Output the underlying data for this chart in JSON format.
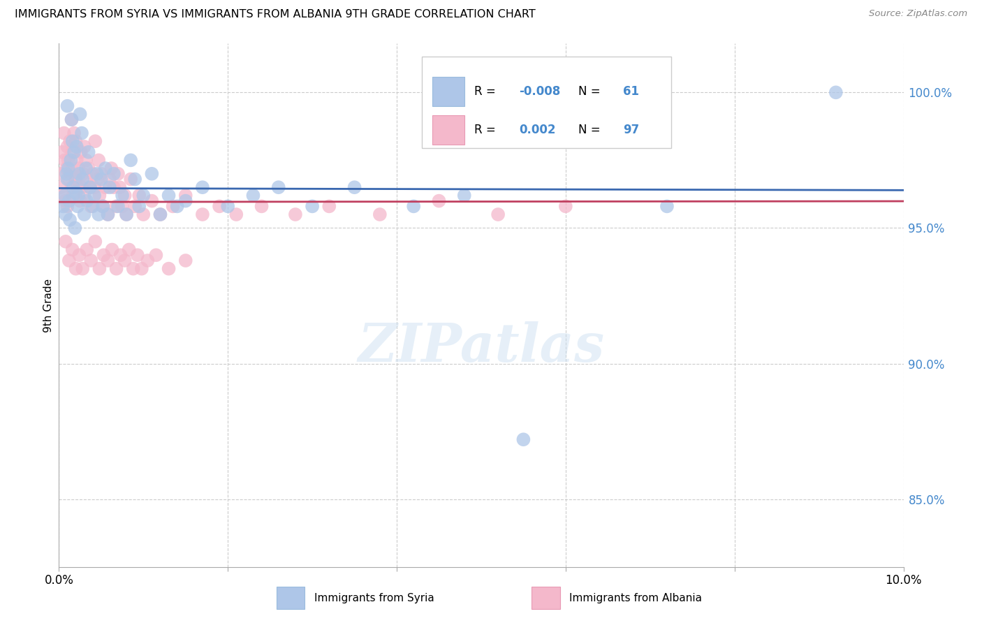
{
  "title": "IMMIGRANTS FROM SYRIA VS IMMIGRANTS FROM ALBANIA 9TH GRADE CORRELATION CHART",
  "source": "Source: ZipAtlas.com",
  "ylabel": "9th Grade",
  "xlim": [
    0.0,
    10.0
  ],
  "ylim": [
    82.5,
    101.8
  ],
  "yticks": [
    85.0,
    90.0,
    95.0,
    100.0
  ],
  "ytick_labels": [
    "85.0%",
    "90.0%",
    "95.0%",
    "100.0%"
  ],
  "watermark": "ZIPatlas",
  "syria_color": "#aec6e8",
  "albania_color": "#f4b8cb",
  "syria_line_color": "#3a68b0",
  "albania_line_color": "#c04060",
  "background_color": "#ffffff",
  "grid_color": "#cccccc",
  "syria_R": "-0.008",
  "syria_N": "61",
  "albania_R": "0.002",
  "albania_N": "97",
  "syria_x": [
    0.05,
    0.07,
    0.08,
    0.09,
    0.1,
    0.1,
    0.11,
    0.12,
    0.13,
    0.14,
    0.15,
    0.16,
    0.17,
    0.18,
    0.19,
    0.2,
    0.21,
    0.22,
    0.23,
    0.24,
    0.25,
    0.27,
    0.28,
    0.3,
    0.32,
    0.33,
    0.35,
    0.37,
    0.4,
    0.42,
    0.45,
    0.47,
    0.5,
    0.52,
    0.55,
    0.58,
    0.6,
    0.65,
    0.7,
    0.75,
    0.8,
    0.85,
    0.9,
    0.95,
    1.0,
    1.1,
    1.2,
    1.3,
    1.4,
    1.5,
    1.7,
    2.0,
    2.3,
    2.6,
    3.0,
    3.5,
    4.2,
    4.8,
    5.5,
    7.2,
    9.2
  ],
  "syria_y": [
    95.8,
    96.2,
    95.5,
    97.0,
    96.8,
    99.5,
    97.2,
    96.0,
    95.3,
    97.5,
    99.0,
    98.2,
    96.5,
    97.8,
    95.0,
    96.3,
    98.0,
    95.8,
    96.2,
    97.0,
    99.2,
    98.5,
    96.8,
    95.5,
    97.2,
    96.0,
    97.8,
    96.5,
    95.8,
    96.2,
    97.0,
    95.5,
    96.8,
    95.8,
    97.2,
    95.5,
    96.5,
    97.0,
    95.8,
    96.2,
    95.5,
    97.5,
    96.8,
    95.8,
    96.2,
    97.0,
    95.5,
    96.2,
    95.8,
    96.0,
    96.5,
    95.8,
    96.2,
    96.5,
    95.8,
    96.5,
    95.8,
    96.2,
    87.2,
    95.8,
    100.0
  ],
  "albania_x": [
    0.02,
    0.03,
    0.04,
    0.05,
    0.06,
    0.07,
    0.08,
    0.09,
    0.1,
    0.1,
    0.11,
    0.12,
    0.13,
    0.14,
    0.15,
    0.15,
    0.16,
    0.17,
    0.18,
    0.19,
    0.2,
    0.2,
    0.21,
    0.22,
    0.23,
    0.25,
    0.26,
    0.27,
    0.28,
    0.3,
    0.3,
    0.32,
    0.33,
    0.35,
    0.37,
    0.38,
    0.4,
    0.42,
    0.43,
    0.45,
    0.47,
    0.48,
    0.5,
    0.52,
    0.55,
    0.58,
    0.6,
    0.62,
    0.65,
    0.68,
    0.7,
    0.72,
    0.75,
    0.78,
    0.8,
    0.85,
    0.9,
    0.95,
    1.0,
    1.1,
    1.2,
    1.35,
    1.5,
    1.7,
    1.9,
    2.1,
    2.4,
    2.8,
    3.2,
    3.8,
    4.5,
    5.2,
    6.0,
    0.08,
    0.12,
    0.16,
    0.2,
    0.24,
    0.28,
    0.33,
    0.38,
    0.43,
    0.48,
    0.53,
    0.58,
    0.63,
    0.68,
    0.73,
    0.78,
    0.83,
    0.88,
    0.93,
    0.98,
    1.05,
    1.15,
    1.3,
    1.5
  ],
  "albania_y": [
    96.5,
    97.0,
    97.8,
    96.2,
    98.5,
    97.5,
    96.0,
    97.2,
    95.8,
    98.0,
    97.5,
    96.8,
    98.2,
    97.0,
    96.5,
    99.0,
    97.8,
    96.2,
    98.5,
    97.0,
    96.8,
    98.2,
    97.5,
    96.5,
    97.2,
    96.0,
    97.8,
    96.5,
    97.0,
    96.2,
    98.0,
    97.5,
    96.8,
    97.2,
    96.5,
    95.8,
    97.0,
    96.5,
    98.2,
    96.8,
    97.5,
    96.2,
    97.0,
    95.8,
    96.5,
    95.5,
    96.8,
    97.2,
    96.5,
    95.8,
    97.0,
    96.5,
    95.8,
    96.2,
    95.5,
    96.8,
    95.8,
    96.2,
    95.5,
    96.0,
    95.5,
    95.8,
    96.2,
    95.5,
    95.8,
    95.5,
    95.8,
    95.5,
    95.8,
    95.5,
    96.0,
    95.5,
    95.8,
    94.5,
    93.8,
    94.2,
    93.5,
    94.0,
    93.5,
    94.2,
    93.8,
    94.5,
    93.5,
    94.0,
    93.8,
    94.2,
    93.5,
    94.0,
    93.8,
    94.2,
    93.5,
    94.0,
    93.5,
    93.8,
    94.0,
    93.5,
    93.8
  ]
}
